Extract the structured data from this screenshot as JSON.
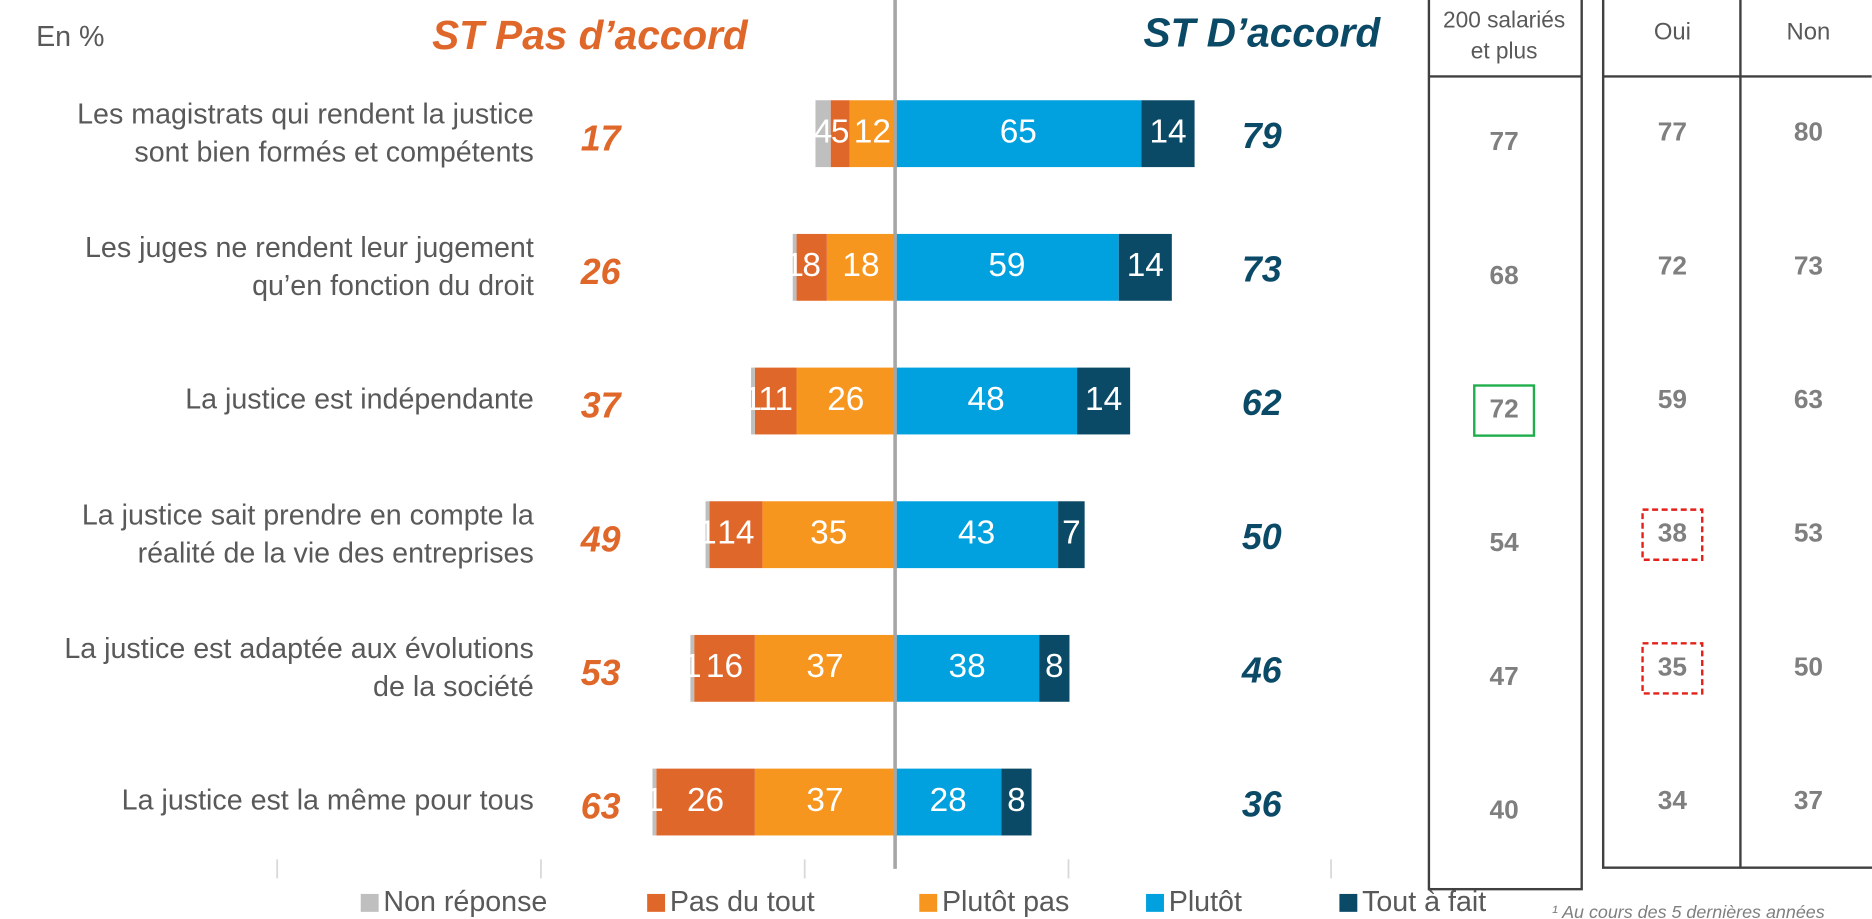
{
  "chart_data": {
    "type": "diverging-bar",
    "unit_note": "En %",
    "left_total_title": "ST Pas d’accord",
    "right_total_title": "ST D’accord",
    "categories": [
      [
        "Les magistrats qui rendent la justice",
        "sont bien formés et compétents"
      ],
      [
        "Les juges ne rendent leur jugement",
        "qu’en fonction du droit"
      ],
      [
        "La justice est indépendante"
      ],
      [
        "La justice sait prendre en compte la",
        "réalité de la vie des entreprises"
      ],
      [
        "La justice est adaptée aux évolutions",
        "de la société"
      ],
      [
        "La justice est la même pour tous"
      ]
    ],
    "series": [
      {
        "name": "Non réponse",
        "color": "#bfbfbf",
        "side": "left",
        "values": [
          4,
          1,
          1,
          1,
          1,
          1
        ]
      },
      {
        "name": "Pas du tout",
        "color": "#e0672a",
        "side": "left",
        "values": [
          5,
          8,
          11,
          14,
          16,
          26
        ]
      },
      {
        "name": "Plutôt pas",
        "color": "#f7961e",
        "side": "left",
        "values": [
          12,
          18,
          26,
          35,
          37,
          37
        ]
      },
      {
        "name": "Plutôt",
        "color": "#00a1de",
        "side": "right",
        "values": [
          65,
          59,
          48,
          43,
          38,
          28
        ]
      },
      {
        "name": "Tout à fait",
        "color": "#0b4a67",
        "side": "right",
        "values": [
          14,
          14,
          14,
          7,
          8,
          8
        ]
      }
    ],
    "left_totals": [
      17,
      26,
      37,
      49,
      53,
      63
    ],
    "right_totals": [
      79,
      73,
      62,
      50,
      46,
      36
    ],
    "xlim": [
      -163,
      115
    ],
    "tables": [
      {
        "header": [
          "200 salariés",
          "et plus"
        ],
        "columns": [
          {
            "values": [
              77,
              68,
              72,
              54,
              47,
              40
            ]
          }
        ],
        "highlights": [
          {
            "column": 0,
            "row": 2,
            "color": "#1fae4b",
            "style": "solid"
          }
        ]
      },
      {
        "columns": [
          {
            "header": "Oui",
            "values": [
              77,
              72,
              59,
              38,
              35,
              34
            ]
          },
          {
            "header": "Non",
            "values": [
              80,
              73,
              63,
              53,
              50,
              37
            ]
          }
        ],
        "highlights": [
          {
            "column": 0,
            "row": 3,
            "color": "#e32119",
            "style": "dashed"
          },
          {
            "column": 0,
            "row": 4,
            "color": "#e32119",
            "style": "dashed"
          }
        ]
      }
    ],
    "footnote": "¹ Au cours des 5 dernières années"
  }
}
